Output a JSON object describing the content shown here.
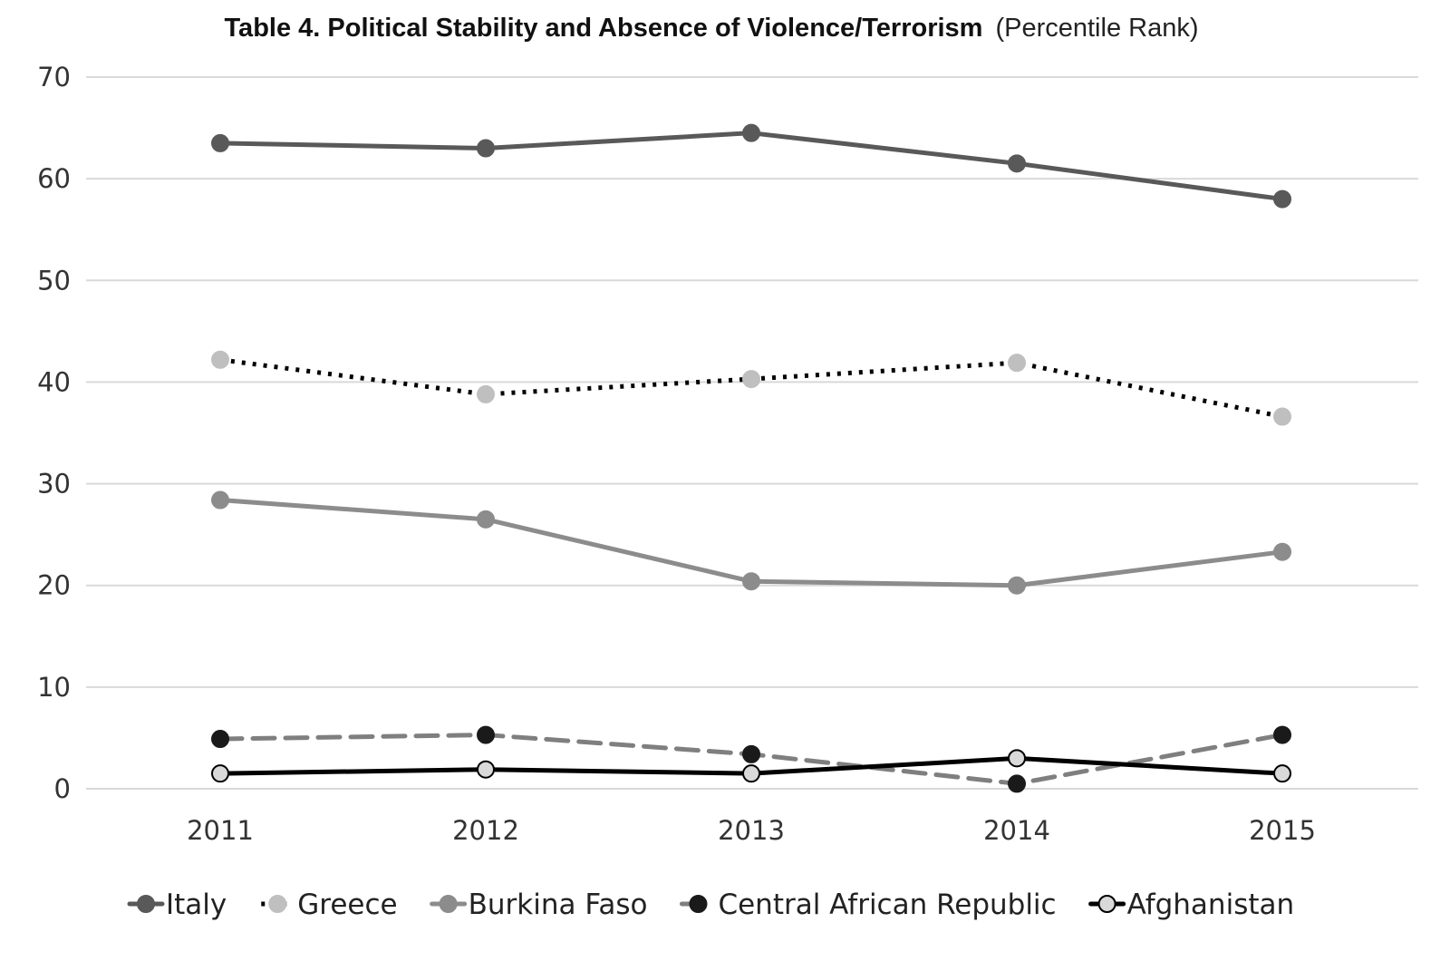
{
  "chart_data": {
    "type": "line",
    "title": "Table 4. Political Stability and Absence of Violence/Terrorism",
    "subtitle": "(Percentile Rank)",
    "xlabel": "",
    "ylabel": "",
    "categories": [
      "2011",
      "2012",
      "2013",
      "2014",
      "2015"
    ],
    "ylim": [
      0,
      70
    ],
    "yticks": [
      0,
      10,
      20,
      30,
      40,
      50,
      60,
      70
    ],
    "grid": true,
    "legend_position": "bottom",
    "series": [
      {
        "name": "Italy",
        "values": [
          63.5,
          63.0,
          64.5,
          61.5,
          58.0
        ],
        "line_color": "#595959",
        "marker_fill": "#595959",
        "marker_stroke": "#595959",
        "line_style": "solid"
      },
      {
        "name": "Greece",
        "values": [
          42.2,
          38.8,
          40.3,
          41.9,
          36.6
        ],
        "line_color": "#000000",
        "marker_fill": "#bfbfbf",
        "marker_stroke": "#bfbfbf",
        "line_style": "dotted"
      },
      {
        "name": "Burkina Faso",
        "values": [
          28.4,
          26.5,
          20.4,
          20.0,
          23.3
        ],
        "line_color": "#8c8c8c",
        "marker_fill": "#8c8c8c",
        "marker_stroke": "#8c8c8c",
        "line_style": "solid"
      },
      {
        "name": "Central African Republic",
        "values": [
          4.9,
          5.3,
          3.4,
          0.5,
          5.3
        ],
        "line_color": "#7f7f7f",
        "marker_fill": "#1a1a1a",
        "marker_stroke": "#1a1a1a",
        "line_style": "dashed"
      },
      {
        "name": "Afghanistan",
        "values": [
          1.5,
          1.9,
          1.5,
          3.0,
          1.5
        ],
        "line_color": "#000000",
        "marker_fill": "#d9d9d9",
        "marker_stroke": "#000000",
        "line_style": "solid"
      }
    ]
  }
}
